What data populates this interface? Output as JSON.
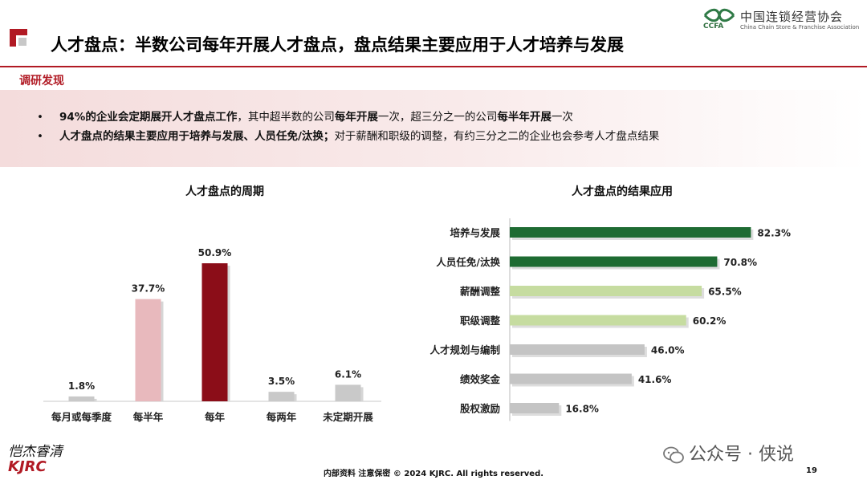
{
  "header": {
    "title": "人才盘点：半数公司每年开展人才盘点，盘点结果主要应用于人才培养与发展",
    "logo_cn": "中国连锁经营协会",
    "logo_en": "China Chain Store & Franchise Association",
    "logo_abbr": "CCFA",
    "accent_color": "#b11a24"
  },
  "findings": {
    "label": "调研发现",
    "items": [
      [
        {
          "text": "94%的企业会定期展开人才盘点工作",
          "bold": true
        },
        {
          "text": "，其中超半数的公司",
          "bold": false
        },
        {
          "text": "每年开展",
          "bold": true
        },
        {
          "text": "一次，超三分之一的公司",
          "bold": false
        },
        {
          "text": "每半年开展",
          "bold": true
        },
        {
          "text": "一次",
          "bold": false
        }
      ],
      [
        {
          "text": "人才盘点的结果主要应用于培养与发展、人员任免/汰换；",
          "bold": true
        },
        {
          "text": "对于薪酬和职级的调整，有约三分之二的企业也会参考人才盘点结果",
          "bold": false
        }
      ]
    ]
  },
  "chart_data": [
    {
      "type": "bar",
      "title": "人才盘点的周期",
      "categories": [
        "每月或每季度",
        "每半年",
        "每年",
        "每两年",
        "未定期开展"
      ],
      "values": [
        1.8,
        37.7,
        50.9,
        3.5,
        6.1
      ],
      "value_labels": [
        "1.8%",
        "37.7%",
        "50.9%",
        "3.5%",
        "6.1%"
      ],
      "colors": [
        "#c9c9c9",
        "#e8b9bd",
        "#8b0d18",
        "#c9c9c9",
        "#c9c9c9"
      ],
      "unit": "%",
      "ylim": [
        0,
        60
      ],
      "grid": false
    },
    {
      "type": "bar",
      "orientation": "horizontal",
      "title": "人才盘点的结果应用",
      "categories": [
        "培养与发展",
        "人员任免/汰换",
        "薪酬调整",
        "职级调整",
        "人才规划与编制",
        "绩效奖金",
        "股权激励"
      ],
      "values": [
        82.3,
        70.8,
        65.5,
        60.2,
        46.0,
        41.6,
        16.8
      ],
      "value_labels": [
        "82.3%",
        "70.8%",
        "65.5%",
        "60.2%",
        "46.0%",
        "41.6%",
        "16.8%"
      ],
      "colors": [
        "#1e6b32",
        "#1e6b32",
        "#c6dca0",
        "#c6dca0",
        "#c4c4c4",
        "#c4c4c4",
        "#c4c4c4"
      ],
      "unit": "%",
      "xlim": [
        0,
        100
      ],
      "grid": false
    }
  ],
  "footer": {
    "text": "内部资料 注意保密 © 2024 KJRC. All rights reserved.",
    "page_number": "19",
    "watermark": "公众号 · 侠说",
    "signature_cn": "恺杰睿清",
    "signature_en": "KJRC"
  }
}
